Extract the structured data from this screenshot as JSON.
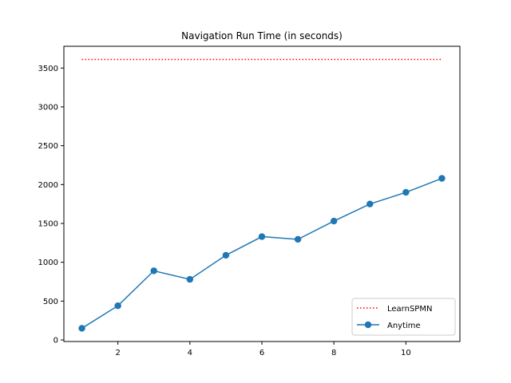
{
  "chart_data": {
    "type": "line",
    "title": "Navigation Run Time (in seconds)",
    "xlabel": "",
    "ylabel": "",
    "xlim": [
      0.5,
      11.5
    ],
    "ylim": [
      -20,
      3780
    ],
    "x_ticks": [
      2,
      4,
      6,
      8,
      10
    ],
    "y_ticks": [
      0,
      500,
      1000,
      1500,
      2000,
      2500,
      3000,
      3500
    ],
    "grid": false,
    "legend_position": "lower-right",
    "x": [
      1,
      2,
      3,
      4,
      5,
      6,
      7,
      8,
      9,
      10,
      11
    ],
    "series": [
      {
        "name": "LearnSPMN",
        "style": "dotted",
        "color": "#ff0000",
        "values": [
          3610,
          3610,
          3610,
          3610,
          3610,
          3610,
          3610,
          3610,
          3610,
          3610,
          3610
        ]
      },
      {
        "name": "Anytime",
        "style": "solid-with-markers",
        "color": "#1f77b4",
        "values": [
          150,
          440,
          890,
          780,
          1090,
          1330,
          1295,
          1530,
          1750,
          1900,
          2080
        ]
      }
    ]
  }
}
